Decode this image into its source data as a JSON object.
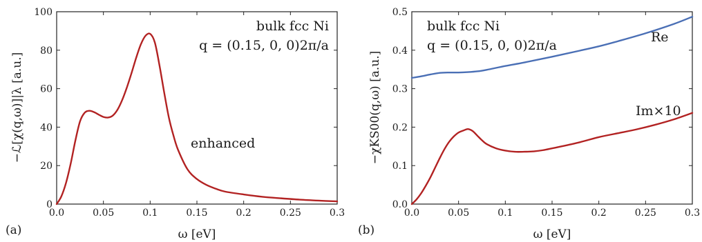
{
  "chart_data": [
    {
      "type": "line",
      "panel_label": "(a)",
      "xlabel": "ω [eV]",
      "ylabel": "−ℒ[χ(q,ω)]|λ [a.u.]",
      "xlim": [
        0,
        0.3
      ],
      "ylim": [
        0,
        100
      ],
      "x_ticks": [
        "0.0",
        "0.05",
        "0.1",
        "0.15",
        "0.2",
        "0.25",
        "0.3"
      ],
      "y_ticks": [
        "0",
        "20",
        "40",
        "60",
        "80",
        "100"
      ],
      "annotations": [
        "bulk fcc Ni",
        "q = (0.15, 0, 0)2π/a"
      ],
      "series": [
        {
          "name": "enhanced",
          "color": "#b22222",
          "x": [
            0.0,
            0.005,
            0.01,
            0.015,
            0.02,
            0.025,
            0.03,
            0.035,
            0.04,
            0.045,
            0.05,
            0.055,
            0.06,
            0.065,
            0.07,
            0.075,
            0.08,
            0.085,
            0.09,
            0.095,
            0.1,
            0.105,
            0.11,
            0.115,
            0.12,
            0.125,
            0.13,
            0.14,
            0.15,
            0.16,
            0.17,
            0.18,
            0.2,
            0.22,
            0.24,
            0.26,
            0.28,
            0.3
          ],
          "y": [
            0,
            4,
            11,
            21,
            33,
            43,
            47.5,
            48.5,
            47.8,
            46.5,
            45.3,
            45,
            46,
            49,
            54,
            60.5,
            68,
            76,
            83,
            87.5,
            88.5,
            84,
            72,
            58,
            45,
            35.5,
            28,
            18,
            13,
            10,
            8,
            6.5,
            5,
            3.8,
            3,
            2.3,
            1.8,
            1.4
          ]
        }
      ]
    },
    {
      "type": "line",
      "panel_label": "(b)",
      "xlabel": "ω [eV]",
      "ylabel": "−χKS00(q,ω) [a.u.]",
      "xlim": [
        0,
        0.3
      ],
      "ylim": [
        0,
        0.5
      ],
      "x_ticks": [
        "0.0",
        "0.05",
        "0.1",
        "0.15",
        "0.2",
        "0.25",
        "0.3"
      ],
      "y_ticks": [
        "0.0",
        "0.1",
        "0.2",
        "0.3",
        "0.4",
        "0.5"
      ],
      "annotations": [
        "bulk fcc Ni",
        "q = (0.15, 0, 0)2π/a"
      ],
      "series": [
        {
          "name": "Re",
          "color": "#4a6fb5",
          "x": [
            0.0,
            0.01,
            0.02,
            0.03,
            0.04,
            0.05,
            0.06,
            0.07,
            0.08,
            0.1,
            0.12,
            0.15,
            0.18,
            0.2,
            0.22,
            0.25,
            0.28,
            0.3
          ],
          "y": [
            0.328,
            0.332,
            0.337,
            0.341,
            0.342,
            0.342,
            0.343,
            0.345,
            0.349,
            0.359,
            0.368,
            0.383,
            0.399,
            0.41,
            0.423,
            0.444,
            0.468,
            0.487
          ]
        },
        {
          "name": "Im×10",
          "color": "#b22222",
          "x": [
            0.0,
            0.005,
            0.01,
            0.015,
            0.02,
            0.025,
            0.03,
            0.035,
            0.04,
            0.045,
            0.05,
            0.055,
            0.06,
            0.065,
            0.07,
            0.075,
            0.08,
            0.09,
            0.1,
            0.11,
            0.12,
            0.13,
            0.14,
            0.16,
            0.18,
            0.2,
            0.22,
            0.24,
            0.26,
            0.28,
            0.3
          ],
          "y": [
            0.0,
            0.012,
            0.028,
            0.048,
            0.07,
            0.095,
            0.12,
            0.143,
            0.162,
            0.176,
            0.186,
            0.191,
            0.195,
            0.19,
            0.178,
            0.166,
            0.156,
            0.145,
            0.139,
            0.136,
            0.136,
            0.137,
            0.14,
            0.15,
            0.161,
            0.174,
            0.184,
            0.194,
            0.206,
            0.22,
            0.237
          ]
        }
      ]
    }
  ]
}
